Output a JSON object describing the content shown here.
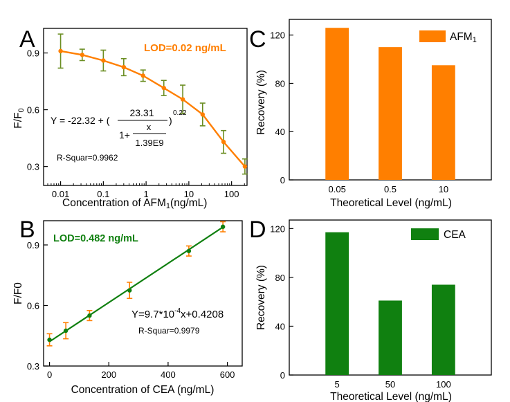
{
  "colors": {
    "orange": "#FF7F00",
    "green": "#108010",
    "olive": "#6B8E23",
    "axis": "#000000"
  },
  "chart_data": [
    {
      "id": "A",
      "panel_label": "A",
      "type": "scatter",
      "xscale": "log",
      "xlim": [
        0.004,
        230
      ],
      "ylim": [
        0.2,
        1.03
      ],
      "x_ticks": [
        0.01,
        0.1,
        1,
        10,
        100
      ],
      "x_tick_labels": [
        "0.01",
        "0.1",
        "1",
        "10",
        "100"
      ],
      "y_ticks": [
        0.3,
        0.6,
        0.9
      ],
      "y_tick_labels": [
        "0.3",
        "0.6",
        "0.9"
      ],
      "xlabel_pre": "Concentration of AFM",
      "xlabel_sub": "1",
      "xlabel_post": "(ng/mL)",
      "ylabel_pre": "F/F",
      "ylabel_sub": "0",
      "points": [
        {
          "x": 0.01,
          "y": 0.91,
          "err": 0.09
        },
        {
          "x": 0.032,
          "y": 0.89,
          "err": 0.03
        },
        {
          "x": 0.1,
          "y": 0.86,
          "err": 0.055
        },
        {
          "x": 0.3,
          "y": 0.825,
          "err": 0.045
        },
        {
          "x": 0.85,
          "y": 0.78,
          "err": 0.03
        },
        {
          "x": 2.6,
          "y": 0.715,
          "err": 0.04
        },
        {
          "x": 7.2,
          "y": 0.655,
          "err": 0.075
        },
        {
          "x": 21,
          "y": 0.575,
          "err": 0.06
        },
        {
          "x": 65,
          "y": 0.43,
          "err": 0.06
        },
        {
          "x": 205,
          "y": 0.3,
          "err": 0.04
        }
      ],
      "annotations": {
        "lod": "LOD=0.02 ng/mL",
        "eq_lhs": "Y = -22.32 + (",
        "eq_num": "23.31",
        "eq_den_pre": "1+",
        "eq_frac_num": "x",
        "eq_frac_den": "1.39E9",
        "eq_close": ")",
        "eq_exp": "0.22",
        "r2": "R-Squar=0.9962"
      }
    },
    {
      "id": "B",
      "panel_label": "B",
      "type": "scatter",
      "xscale": "linear",
      "xlim": [
        -20,
        650
      ],
      "ylim": [
        0.3,
        1.02
      ],
      "x_ticks": [
        0,
        200,
        400,
        600
      ],
      "x_tick_labels": [
        "0",
        "200",
        "400",
        "600"
      ],
      "y_ticks": [
        0.3,
        0.6,
        0.9
      ],
      "y_tick_labels": [
        "0.3",
        "0.6",
        "0.9"
      ],
      "xlabel": "Concentration of CEA (ng/mL)",
      "ylabel": "F/F0",
      "points": [
        {
          "x": 0,
          "y": 0.43,
          "err": 0.03
        },
        {
          "x": 55,
          "y": 0.475,
          "err": 0.04
        },
        {
          "x": 135,
          "y": 0.55,
          "err": 0.025
        },
        {
          "x": 270,
          "y": 0.675,
          "err": 0.04
        },
        {
          "x": 470,
          "y": 0.87,
          "err": 0.025
        },
        {
          "x": 585,
          "y": 0.99,
          "err": 0.025
        }
      ],
      "fit": {
        "slope": 0.00097,
        "intercept": 0.4208
      },
      "annotations": {
        "lod": "LOD=0.482 ng/mL",
        "eq_pre": "Y=9.7*10",
        "eq_exp": "-4",
        "eq_post": "x+0.4208",
        "r2": "R-Squar=0.9979"
      }
    },
    {
      "id": "C",
      "panel_label": "C",
      "type": "bar",
      "categories": [
        "0.05",
        "0.5",
        "10"
      ],
      "values": [
        126,
        110,
        95
      ],
      "ylim": [
        0,
        133
      ],
      "y_ticks": [
        0,
        40,
        80,
        120
      ],
      "y_tick_labels": [
        "0",
        "40",
        "80",
        "120"
      ],
      "xlabel": "Theoretical Level (ng/mL)",
      "ylabel": "Recovery (%)",
      "legend_pre": "AFM",
      "legend_sub": "1"
    },
    {
      "id": "D",
      "panel_label": "D",
      "type": "bar",
      "categories": [
        "5",
        "50",
        "100"
      ],
      "values": [
        117,
        61,
        74
      ],
      "ylim": [
        0,
        127
      ],
      "y_ticks": [
        0,
        40,
        80,
        120
      ],
      "y_tick_labels": [
        "0",
        "40",
        "80",
        "120"
      ],
      "xlabel": "Theoretical Level (ng/mL)",
      "ylabel": "Recovery (%)",
      "legend": "CEA"
    }
  ]
}
